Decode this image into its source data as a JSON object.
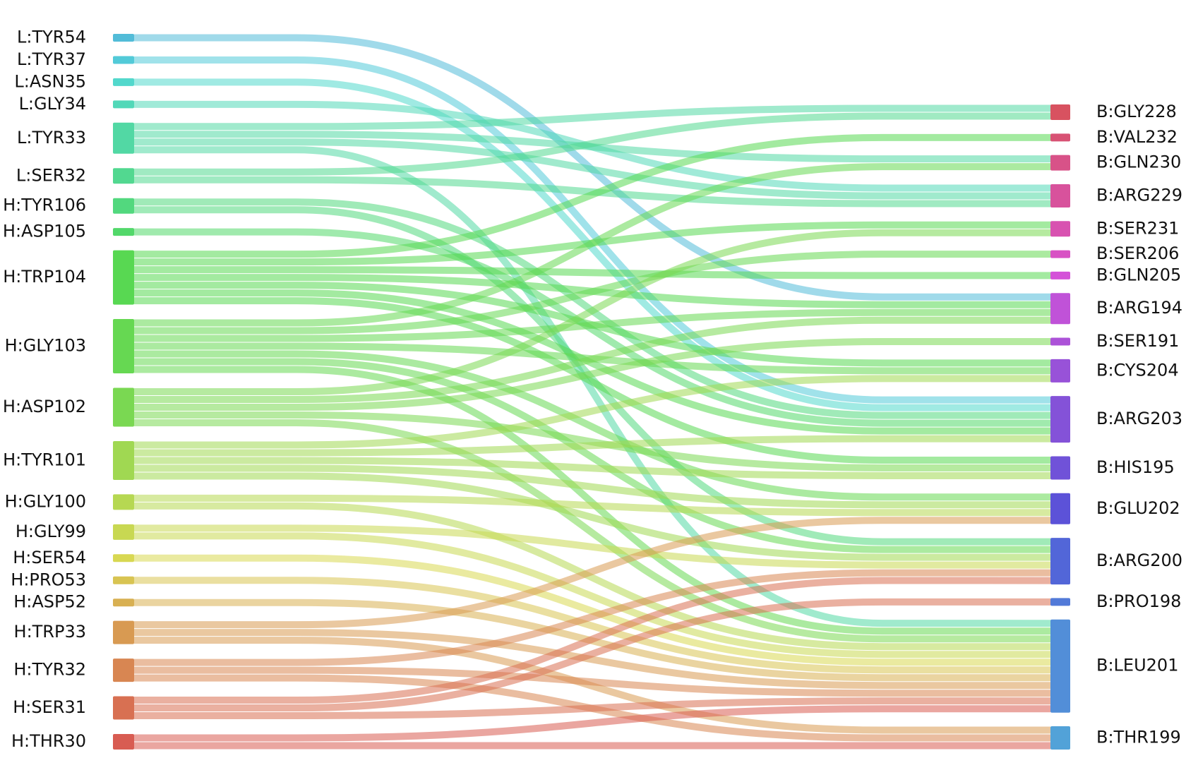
{
  "left": [
    {
      "label": "L:TYR54",
      "color": "#52bcd8"
    },
    {
      "label": "L:TYR37",
      "color": "#52cad8"
    },
    {
      "label": "L:ASN35",
      "color": "#52d8cc"
    },
    {
      "label": "L:GLY34",
      "color": "#52d8b8"
    },
    {
      "label": "L:TYR33",
      "color": "#52d8a4"
    },
    {
      "label": "L:SER32",
      "color": "#52d890"
    },
    {
      "label": "H:TYR106",
      "color": "#52d87e"
    },
    {
      "label": "H:ASP105",
      "color": "#52d86a"
    },
    {
      "label": "H:TRP104",
      "color": "#58d852"
    },
    {
      "label": "H:GLY103",
      "color": "#66d852"
    },
    {
      "label": "H:ASP102",
      "color": "#7ad852"
    },
    {
      "label": "H:TYR101",
      "color": "#a0d852"
    },
    {
      "label": "H:GLY100",
      "color": "#b6d852"
    },
    {
      "label": "H:GLY99",
      "color": "#c8d852"
    },
    {
      "label": "H:SER54",
      "color": "#d8d852"
    },
    {
      "label": "H:PRO53",
      "color": "#d8c452"
    },
    {
      "label": "H:ASP52",
      "color": "#d8b052"
    },
    {
      "label": "H:TRP33",
      "color": "#d89a52"
    },
    {
      "label": "H:TYR32",
      "color": "#d88652"
    },
    {
      "label": "H:SER31",
      "color": "#d87052"
    },
    {
      "label": "H:THR30",
      "color": "#d85c52"
    }
  ],
  "right": [
    {
      "label": "B:GLY228",
      "color": "#d85260"
    },
    {
      "label": "B:VAL232",
      "color": "#d85274"
    },
    {
      "label": "B:GLN230",
      "color": "#d85288"
    },
    {
      "label": "B:ARG229",
      "color": "#d8529c"
    },
    {
      "label": "B:SER231",
      "color": "#d852b0"
    },
    {
      "label": "B:SER206",
      "color": "#d852c4"
    },
    {
      "label": "B:GLN205",
      "color": "#d452d8"
    },
    {
      "label": "B:ARG194",
      "color": "#c052d8"
    },
    {
      "label": "B:SER191",
      "color": "#ac52d8"
    },
    {
      "label": "B:CYS204",
      "color": "#9852d8"
    },
    {
      "label": "B:ARG203",
      "color": "#8452d8"
    },
    {
      "label": "B:HIS195",
      "color": "#7052d8"
    },
    {
      "label": "B:GLU202",
      "color": "#5c52d8"
    },
    {
      "label": "B:ARG200",
      "color": "#5266d8"
    },
    {
      "label": "B:PRO198",
      "color": "#527ad8"
    },
    {
      "label": "B:LEU201",
      "color": "#528ed8"
    },
    {
      "label": "B:THR199",
      "color": "#52a2d8"
    }
  ],
  "links": [
    {
      "source": 0,
      "target": 7,
      "value": 1
    },
    {
      "source": 1,
      "target": 10,
      "value": 1
    },
    {
      "source": 2,
      "target": 10,
      "value": 1
    },
    {
      "source": 3,
      "target": 3,
      "value": 1
    },
    {
      "source": 4,
      "target": 0,
      "value": 1
    },
    {
      "source": 4,
      "target": 2,
      "value": 1
    },
    {
      "source": 4,
      "target": 3,
      "value": 1
    },
    {
      "source": 4,
      "target": 15,
      "value": 1
    },
    {
      "source": 5,
      "target": 0,
      "value": 1
    },
    {
      "source": 5,
      "target": 3,
      "value": 1
    },
    {
      "source": 6,
      "target": 10,
      "value": 1
    },
    {
      "source": 6,
      "target": 13,
      "value": 1
    },
    {
      "source": 7,
      "target": 10,
      "value": 1
    },
    {
      "source": 8,
      "target": 1,
      "value": 1
    },
    {
      "source": 8,
      "target": 4,
      "value": 1
    },
    {
      "source": 8,
      "target": 7,
      "value": 1
    },
    {
      "source": 8,
      "target": 6,
      "value": 1
    },
    {
      "source": 8,
      "target": 9,
      "value": 1
    },
    {
      "source": 8,
      "target": 10,
      "value": 1
    },
    {
      "source": 8,
      "target": 11,
      "value": 1
    },
    {
      "source": 9,
      "target": 2,
      "value": 1
    },
    {
      "source": 9,
      "target": 5,
      "value": 1
    },
    {
      "source": 9,
      "target": 7,
      "value": 1
    },
    {
      "source": 9,
      "target": 9,
      "value": 1
    },
    {
      "source": 9,
      "target": 12,
      "value": 1
    },
    {
      "source": 9,
      "target": 13,
      "value": 1
    },
    {
      "source": 9,
      "target": 15,
      "value": 1
    },
    {
      "source": 10,
      "target": 4,
      "value": 1
    },
    {
      "source": 10,
      "target": 7,
      "value": 1
    },
    {
      "source": 10,
      "target": 8,
      "value": 1
    },
    {
      "source": 10,
      "target": 11,
      "value": 1
    },
    {
      "source": 10,
      "target": 15,
      "value": 1
    },
    {
      "source": 11,
      "target": 9,
      "value": 1
    },
    {
      "source": 11,
      "target": 10,
      "value": 1
    },
    {
      "source": 11,
      "target": 11,
      "value": 1
    },
    {
      "source": 11,
      "target": 12,
      "value": 1
    },
    {
      "source": 11,
      "target": 13,
      "value": 1
    },
    {
      "source": 12,
      "target": 12,
      "value": 1
    },
    {
      "source": 12,
      "target": 15,
      "value": 1
    },
    {
      "source": 13,
      "target": 13,
      "value": 1
    },
    {
      "source": 13,
      "target": 15,
      "value": 1
    },
    {
      "source": 14,
      "target": 15,
      "value": 1
    },
    {
      "source": 15,
      "target": 15,
      "value": 1
    },
    {
      "source": 16,
      "target": 15,
      "value": 1
    },
    {
      "source": 17,
      "target": 12,
      "value": 1
    },
    {
      "source": 17,
      "target": 15,
      "value": 1
    },
    {
      "source": 17,
      "target": 16,
      "value": 1
    },
    {
      "source": 18,
      "target": 13,
      "value": 1
    },
    {
      "source": 18,
      "target": 15,
      "value": 1
    },
    {
      "source": 18,
      "target": 16,
      "value": 1
    },
    {
      "source": 19,
      "target": 13,
      "value": 1
    },
    {
      "source": 19,
      "target": 14,
      "value": 1
    },
    {
      "source": 19,
      "target": 15,
      "value": 1
    },
    {
      "source": 20,
      "target": 15,
      "value": 1
    },
    {
      "source": 20,
      "target": 16,
      "value": 1
    }
  ]
}
